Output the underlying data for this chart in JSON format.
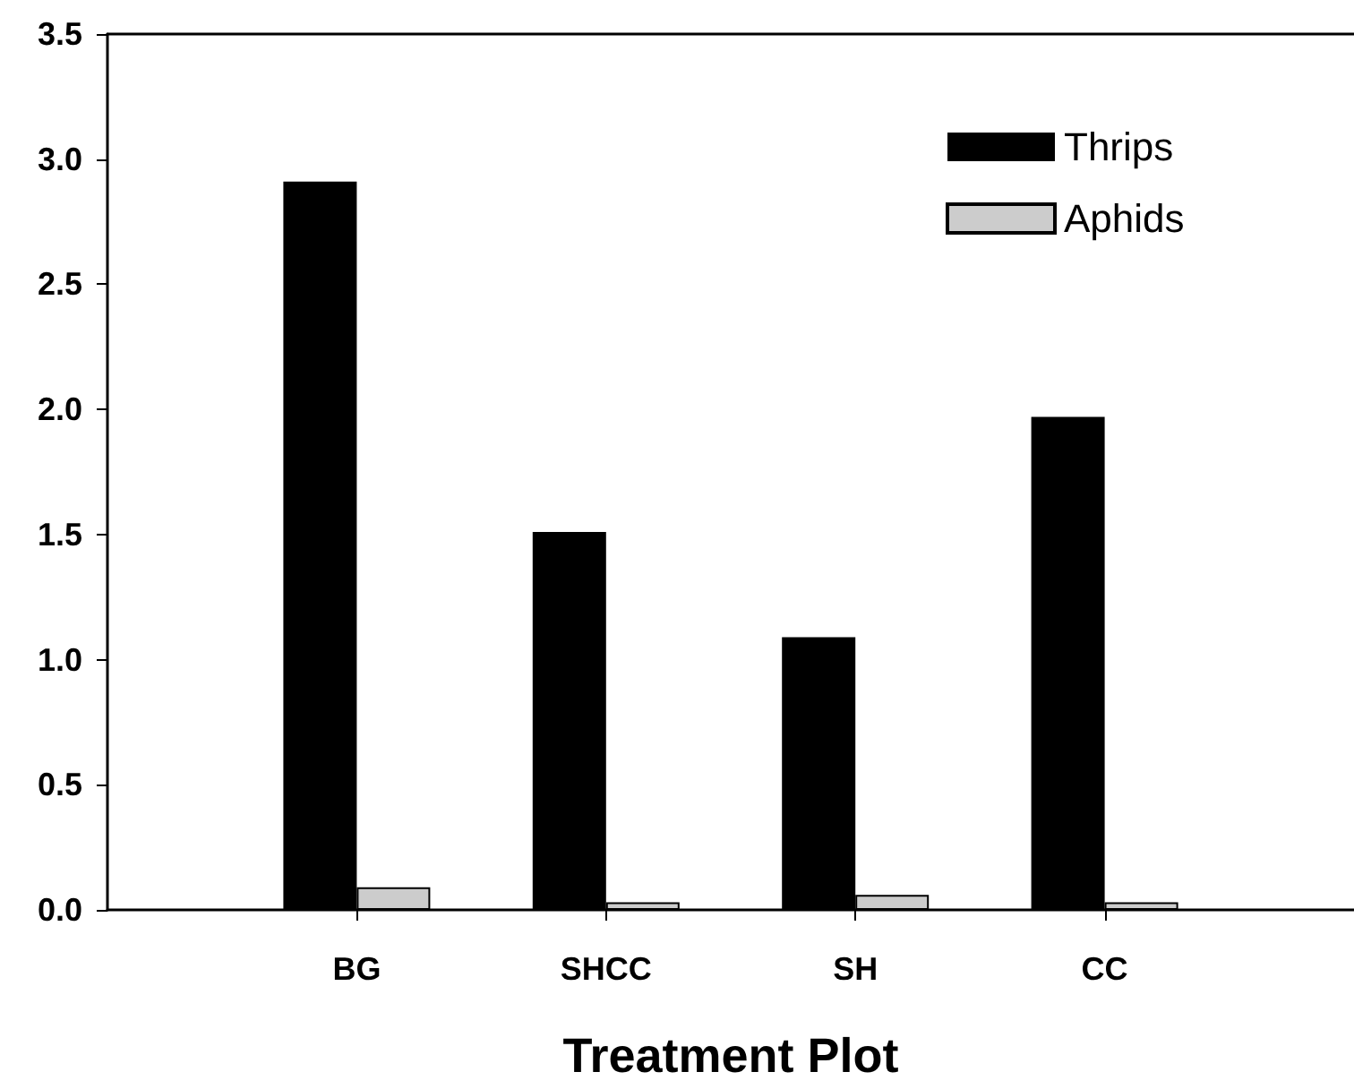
{
  "chart_data": {
    "type": "bar",
    "xlabel": "Treatment Plot",
    "categories": [
      "BG",
      "SHCC",
      "SH",
      "CC"
    ],
    "series": [
      {
        "name": "Thrips",
        "color": "#000000",
        "values": [
          2.91,
          1.51,
          1.09,
          1.97
        ]
      },
      {
        "name": "Aphids",
        "color": "#cccccc",
        "values": [
          0.09,
          0.03,
          0.06,
          0.03
        ]
      }
    ],
    "ylim": [
      0,
      3.5
    ],
    "yticks": [
      {
        "value": 0,
        "label": "0.0"
      },
      {
        "value": 0.5,
        "label": "0.5"
      },
      {
        "value": 1,
        "label": "1.0"
      },
      {
        "value": 1.5,
        "label": "1.5"
      },
      {
        "value": 2,
        "label": "2.0"
      },
      {
        "value": 2.5,
        "label": "2.5"
      },
      {
        "value": 3,
        "label": "3.0"
      },
      {
        "value": 3.5,
        "label": "3.5"
      }
    ],
    "grid": false,
    "legend": "top right"
  }
}
